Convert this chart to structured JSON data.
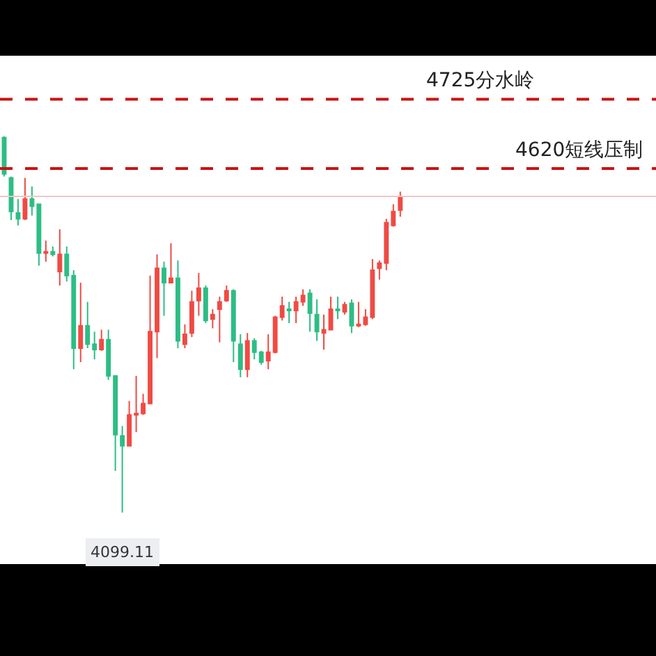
{
  "chart_data": {
    "type": "candlestick",
    "categories": [
      null,
      null,
      null,
      null,
      null,
      null,
      null,
      null,
      null,
      null,
      null,
      null,
      null,
      null,
      null,
      null,
      null,
      null,
      null,
      null,
      null,
      null,
      null,
      null,
      null,
      null,
      null,
      null,
      null,
      null,
      null,
      null,
      null,
      null,
      null,
      null,
      null,
      null,
      null,
      null,
      null,
      null,
      null,
      null,
      null,
      null,
      null,
      null,
      null,
      null,
      null,
      null,
      null,
      null,
      null,
      null,
      null,
      null
    ],
    "ohlc": [
      [
        4667,
        4669,
        4608,
        4612
      ],
      [
        4606,
        4608,
        4542,
        4555
      ],
      [
        4553,
        4574,
        4534,
        4544
      ],
      [
        4544,
        4606,
        4542,
        4574
      ],
      [
        4574,
        4593,
        4549,
        4563
      ],
      [
        4566,
        4566,
        4473,
        4492
      ],
      [
        4492,
        4511,
        4479,
        4494
      ],
      [
        4494,
        4502,
        4487,
        4490
      ],
      [
        4464,
        4528,
        4443,
        4490
      ],
      [
        4490,
        4502,
        4449,
        4458
      ],
      [
        4458,
        4466,
        4316,
        4348
      ],
      [
        4348,
        4447,
        4327,
        4382
      ],
      [
        4382,
        4418,
        4348,
        4354
      ],
      [
        4354,
        4373,
        4331,
        4346
      ],
      [
        4346,
        4376,
        4344,
        4361
      ],
      [
        4361,
        4376,
        4300,
        4306
      ],
      [
        4306,
        4306,
        4162,
        4217
      ],
      [
        4215,
        4230,
        4099.11,
        4200
      ],
      [
        4200,
        4268,
        4200,
        4247
      ],
      [
        4247,
        4306,
        4221,
        4249
      ],
      [
        4249,
        4279,
        4247,
        4264
      ],
      [
        4264,
        4458,
        4264,
        4373
      ],
      [
        4373,
        4490,
        4333,
        4469
      ],
      [
        4469,
        4479,
        4397,
        4447
      ],
      [
        4447,
        4507,
        4447,
        4454
      ],
      [
        4454,
        4481,
        4348,
        4359
      ],
      [
        4354,
        4384,
        4348,
        4369
      ],
      [
        4371,
        4435,
        4365,
        4418
      ],
      [
        4420,
        4462,
        4397,
        4439
      ],
      [
        4439,
        4443,
        4386,
        4390
      ],
      [
        4392,
        4407,
        4378,
        4399
      ],
      [
        4407,
        4426,
        4357,
        4418
      ],
      [
        4420,
        4443,
        4418,
        4435
      ],
      [
        4435,
        4437,
        4327,
        4359
      ],
      [
        4354,
        4369,
        4304,
        4316
      ],
      [
        4316,
        4371,
        4304,
        4359
      ],
      [
        4359,
        4363,
        4331,
        4342
      ],
      [
        4342,
        4344,
        4323,
        4327
      ],
      [
        4329,
        4369,
        4316,
        4342
      ],
      [
        4342,
        4397,
        4340,
        4395
      ],
      [
        4395,
        4426,
        4390,
        4412
      ],
      [
        4407,
        4418,
        4386,
        4405
      ],
      [
        4405,
        4426,
        4386,
        4418
      ],
      [
        4418,
        4437,
        4412,
        4428
      ],
      [
        4431,
        4437,
        4373,
        4401
      ],
      [
        4399,
        4422,
        4359,
        4373
      ],
      [
        4371,
        4399,
        4346,
        4376
      ],
      [
        4376,
        4426,
        4376,
        4407
      ],
      [
        4407,
        4426,
        4392,
        4405
      ],
      [
        4403,
        4418,
        4399,
        4414
      ],
      [
        4416,
        4422,
        4371,
        4382
      ],
      [
        4382,
        4418,
        4380,
        4384
      ],
      [
        4384,
        4407,
        4382,
        4395
      ],
      [
        4395,
        4483,
        4392,
        4466
      ],
      [
        4469,
        4481,
        4452,
        4477
      ],
      [
        4477,
        4544,
        4466,
        4538
      ],
      [
        4534,
        4566,
        4532,
        4555
      ],
      [
        4557,
        4585,
        4547,
        4578
      ]
    ],
    "colors": [
      "#2dbd85",
      "#2dbd85",
      "#2dbd85",
      "#ef4b44",
      "#2dbd85",
      "#2dbd85",
      "#ef4b44",
      "#2dbd85",
      "#ef4b44",
      "#2dbd85",
      "#2dbd85",
      "#ef4b44",
      "#2dbd85",
      "#2dbd85",
      "#ef4b44",
      "#2dbd85",
      "#2dbd85",
      "#2dbd85",
      "#ef4b44",
      "#ef4b44",
      "#ef4b44",
      "#ef4b44",
      "#ef4b44",
      "#2dbd85",
      "#ef4b44",
      "#2dbd85",
      "#ef4b44",
      "#ef4b44",
      "#ef4b44",
      "#2dbd85",
      "#ef4b44",
      "#ef4b44",
      "#ef4b44",
      "#2dbd85",
      "#2dbd85",
      "#ef4b44",
      "#2dbd85",
      "#2dbd85",
      "#ef4b44",
      "#ef4b44",
      "#ef4b44",
      "#2dbd85",
      "#ef4b44",
      "#ef4b44",
      "#2dbd85",
      "#2dbd85",
      "#ef4b44",
      "#ef4b44",
      "#2dbd85",
      "#ef4b44",
      "#2dbd85",
      "#ef4b44",
      "#ef4b44",
      "#ef4b44",
      "#ef4b44",
      "#ef4b44",
      "#ef4b44",
      "#ef4b44"
    ],
    "ylim": [
      4021,
      4791
    ],
    "ref_lines": [
      {
        "axis": "y",
        "value": 4725,
        "label": "4725分水岭",
        "color": "#cc1111",
        "line_style": "dashed"
      },
      {
        "axis": "y",
        "value": 4620,
        "label": "4620短线压制",
        "color": "#cc1111",
        "line_style": "dashed"
      },
      {
        "axis": "y",
        "value": 4578,
        "color": "#f7c4c4",
        "line_style": "solid"
      }
    ],
    "annotations": [
      {
        "text": "4099.11",
        "y": 4099.11
      }
    ],
    "tick_labels": false,
    "grid": false
  }
}
